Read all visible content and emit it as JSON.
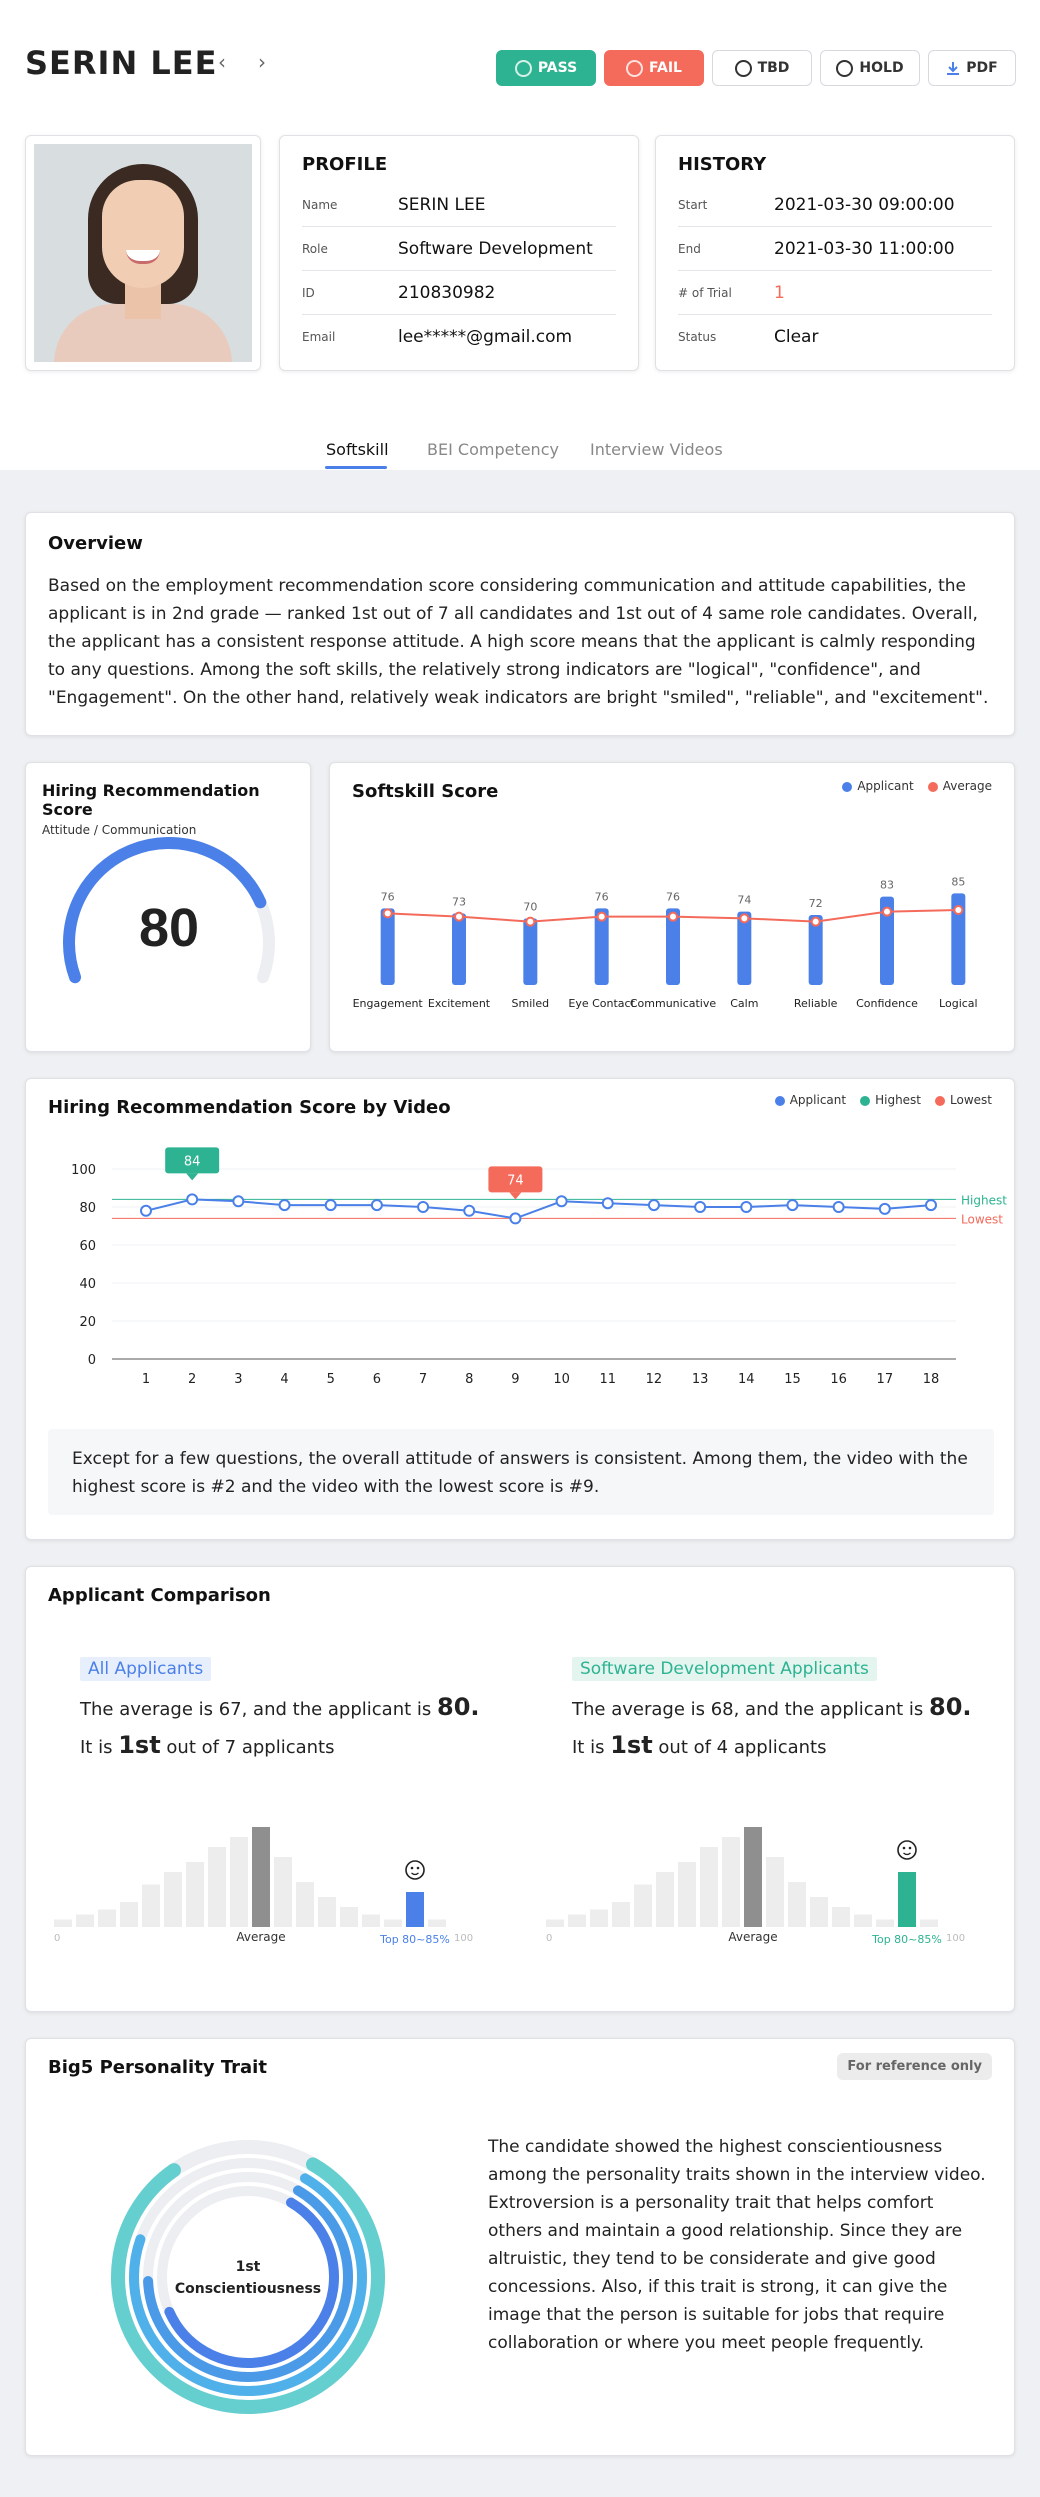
{
  "header": {
    "name": "SERIN LEE",
    "prev_icon": "chevron-left-icon",
    "next_icon": "chevron-right-icon",
    "buttons": {
      "pass": "PASS",
      "fail": "FAIL",
      "tbd": "TBD",
      "hold": "HOLD",
      "pdf": "PDF"
    },
    "colors": {
      "pass": "#2db391",
      "fail": "#f46a5b"
    }
  },
  "profile": {
    "title": "PROFILE",
    "rows": [
      {
        "label": "Name",
        "value": "SERIN LEE"
      },
      {
        "label": "Role",
        "value": "Software Development"
      },
      {
        "label": "ID",
        "value": "210830982"
      },
      {
        "label": "Email",
        "value": "lee*****@gmail.com"
      }
    ]
  },
  "history": {
    "title": "HISTORY",
    "rows": [
      {
        "label": "Start",
        "value": "2021-03-30 09:00:00"
      },
      {
        "label": "End",
        "value": "2021-03-30 11:00:00"
      },
      {
        "label": "# of Trial",
        "value": "1"
      },
      {
        "label": "Status",
        "value": "Clear"
      }
    ]
  },
  "tabs": [
    "Softskill",
    "BEI Competency",
    "Interview Videos"
  ],
  "overview": {
    "title": "Overview",
    "text": "Based on the employment recommendation score considering communication and attitude capabilities, the applicant is in 2nd grade — ranked 1st out of 7 all candidates and 1st out of 4 same role candidates. Overall, the applicant has a consistent response attitude. A high score means that the applicant is calmly responding to any questions. Among the soft skills, the relatively strong indicators are \"logical\", \"confidence\", and \"Engagement\". On the other hand, relatively weak indicators are bright \"smiled\", \"reliable\", and \"excitement\"."
  },
  "hiring": {
    "title": "Hiring Recommendation Score",
    "subtitle": "Attitude / Communication",
    "score": "80",
    "score_fraction": 0.8
  },
  "softskill": {
    "title": "Softskill Score",
    "legend": [
      "Applicant",
      "Average"
    ],
    "colors": {
      "applicant": "#4a80e8",
      "average": "#f46a5b"
    },
    "chart_data": {
      "type": "bar",
      "categories": [
        "Engagement",
        "Excitement",
        "Smiled",
        "Eye Contact",
        "Communicative",
        "Calm",
        "Reliable",
        "Confidence",
        "Logical"
      ],
      "series": [
        {
          "name": "Applicant",
          "values": [
            76,
            73,
            70,
            76,
            76,
            74,
            72,
            83,
            85
          ]
        },
        {
          "name": "Average",
          "values": [
            73,
            71,
            68,
            71,
            71,
            70,
            68,
            74,
            75
          ]
        }
      ],
      "ylim": [
        0,
        100
      ]
    }
  },
  "video": {
    "title": "Hiring Recommendation Score by Video",
    "legend": [
      "Applicant",
      "Highest",
      "Lowest"
    ],
    "colors": {
      "applicant": "#4a80e8",
      "highest": "#2db391",
      "lowest": "#f46a5b"
    },
    "ref_labels": {
      "highest": "Highest",
      "lowest": "Lowest"
    },
    "chart_data": {
      "type": "line",
      "x": [
        1,
        2,
        3,
        4,
        5,
        6,
        7,
        8,
        9,
        10,
        11,
        12,
        13,
        14,
        15,
        16,
        17,
        18
      ],
      "series": [
        {
          "name": "Applicant",
          "values": [
            78,
            84,
            83,
            81,
            81,
            81,
            80,
            78,
            74,
            83,
            82,
            81,
            80,
            80,
            81,
            80,
            79,
            81
          ]
        }
      ],
      "highest": 84,
      "lowest": 74,
      "ylim": [
        0,
        100
      ],
      "yticks": [
        0,
        20,
        40,
        60,
        80,
        100
      ],
      "annotations": [
        {
          "x": 2,
          "label": "84"
        },
        {
          "x": 9,
          "label": "74"
        }
      ]
    },
    "note": "Except for a few questions, the overall attitude of answers is consistent. Among them, the video with the highest score is #2 and the video with the lowest score is #9."
  },
  "comparison": {
    "title": "Applicant Comparison",
    "groups": [
      {
        "tag": "All Applicants",
        "line1_prefix": "The average is 67, and the applicant is ",
        "line1_value": "80.",
        "line2_prefix": "It is ",
        "line2_rank": "1st",
        "line2_suffix": " out of 7 applicants",
        "color": "#4a80e8",
        "tag_bg": "#e8effc",
        "avg_label": "Average",
        "top_label": "Top 80~85%",
        "axis_min": "0",
        "axis_max": "100",
        "hist": [
          3,
          5,
          7,
          10,
          17,
          22,
          26,
          32,
          36,
          40,
          28,
          18,
          12,
          8,
          5,
          3,
          14,
          3
        ],
        "avg_index": 9,
        "app_index": 16
      },
      {
        "tag": "Software Development Applicants",
        "line1_prefix": "The average is 68, and the applicant is ",
        "line1_value": "80.",
        "line2_prefix": "It is ",
        "line2_rank": "1st",
        "line2_suffix": " out of 4 applicants",
        "color": "#2db391",
        "tag_bg": "#e4f5ef",
        "avg_label": "Average",
        "top_label": "Top 80~85%",
        "axis_min": "0",
        "axis_max": "100",
        "hist": [
          3,
          5,
          7,
          10,
          17,
          22,
          26,
          32,
          36,
          40,
          28,
          18,
          12,
          8,
          5,
          3,
          22,
          3
        ],
        "avg_index": 9,
        "app_index": 16
      }
    ],
    "face_icon": "smiley-icon"
  },
  "big5": {
    "title": "Big5 Personality Trait",
    "badge": "For reference only",
    "center_rank": "1st",
    "center_trait": "Conscientiousness",
    "rings": [
      0.82,
      0.72,
      0.66,
      0.6
    ],
    "ring_colors": [
      "#65cfd0",
      "#4fb0ea",
      "#4a9ae8",
      "#4a80e8"
    ],
    "text": "The candidate showed the highest conscientiousness among the personality traits shown in the interview video. Extroversion is a personality trait that helps comfort others and maintain a good relationship. Since they are altruistic, they tend to be considerate and give good concessions. Also, if this trait is strong, it can give the image that the person is suitable for jobs that require collaboration or where you meet people frequently."
  }
}
